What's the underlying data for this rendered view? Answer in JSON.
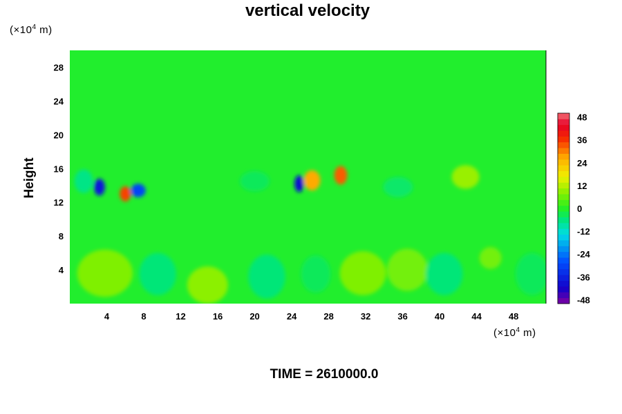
{
  "chart_data": {
    "type": "heatmap",
    "title": "vertical velocity",
    "ylabel": "Height",
    "xlabel": "",
    "x_unit": "(×10",
    "x_unit_exp": "4",
    "x_unit_tail": " m)",
    "y_unit": "(×10",
    "y_unit_exp": "4",
    "y_unit_tail": " m)",
    "xlim": [
      0,
      51.5
    ],
    "ylim": [
      0,
      30
    ],
    "x_ticks": [
      4,
      8,
      12,
      16,
      20,
      24,
      28,
      32,
      36,
      40,
      44,
      48
    ],
    "y_ticks": [
      4,
      8,
      12,
      16,
      20,
      24,
      28
    ],
    "colorbar": {
      "vmin": -50,
      "vmax": 50,
      "ticks": [
        -48,
        -36,
        -24,
        -12,
        0,
        12,
        24,
        36,
        48
      ],
      "step": 3
    },
    "background_value": -1,
    "features": [
      {
        "x": 3.2,
        "y": 13.8,
        "value": -38,
        "rx": 0.6,
        "ry": 1.0
      },
      {
        "x": 7.4,
        "y": 13.4,
        "value": -30,
        "rx": 0.8,
        "ry": 0.8
      },
      {
        "x": 6.0,
        "y": 13.0,
        "value": 34,
        "rx": 0.6,
        "ry": 0.9
      },
      {
        "x": 24.8,
        "y": 14.2,
        "value": -40,
        "rx": 0.5,
        "ry": 1.0
      },
      {
        "x": 26.2,
        "y": 14.6,
        "value": 26,
        "rx": 0.9,
        "ry": 1.2
      },
      {
        "x": 29.3,
        "y": 15.2,
        "value": 32,
        "rx": 0.7,
        "ry": 1.1
      },
      {
        "x": 42.8,
        "y": 15.0,
        "value": 9,
        "rx": 1.5,
        "ry": 1.4
      },
      {
        "x": 3.8,
        "y": 3.6,
        "value": 7,
        "rx": 3.0,
        "ry": 2.8
      },
      {
        "x": 14.9,
        "y": 2.2,
        "value": 8,
        "rx": 2.2,
        "ry": 2.2
      },
      {
        "x": 31.7,
        "y": 3.6,
        "value": 7,
        "rx": 2.5,
        "ry": 2.6
      },
      {
        "x": 36.5,
        "y": 4.0,
        "value": 6,
        "rx": 2.2,
        "ry": 2.5
      },
      {
        "x": 45.5,
        "y": 5.4,
        "value": 6,
        "rx": 1.2,
        "ry": 1.3
      },
      {
        "x": 9.5,
        "y": 3.5,
        "value": -6,
        "rx": 2.0,
        "ry": 2.5
      },
      {
        "x": 21.3,
        "y": 3.2,
        "value": -6,
        "rx": 2.0,
        "ry": 2.6
      },
      {
        "x": 26.6,
        "y": 3.5,
        "value": -4,
        "rx": 1.6,
        "ry": 2.2
      },
      {
        "x": 40.5,
        "y": 3.5,
        "value": -6,
        "rx": 2.0,
        "ry": 2.5
      },
      {
        "x": 50.0,
        "y": 3.5,
        "value": -4,
        "rx": 1.8,
        "ry": 2.5
      },
      {
        "x": 1.5,
        "y": 14.5,
        "value": -7,
        "rx": 1.0,
        "ry": 1.4
      },
      {
        "x": 35.5,
        "y": 13.8,
        "value": -5,
        "rx": 1.6,
        "ry": 1.2
      },
      {
        "x": 20.0,
        "y": 14.5,
        "value": -4,
        "rx": 1.6,
        "ry": 1.2
      }
    ],
    "time_label": "TIME = ",
    "time_value": "2610000.0"
  }
}
